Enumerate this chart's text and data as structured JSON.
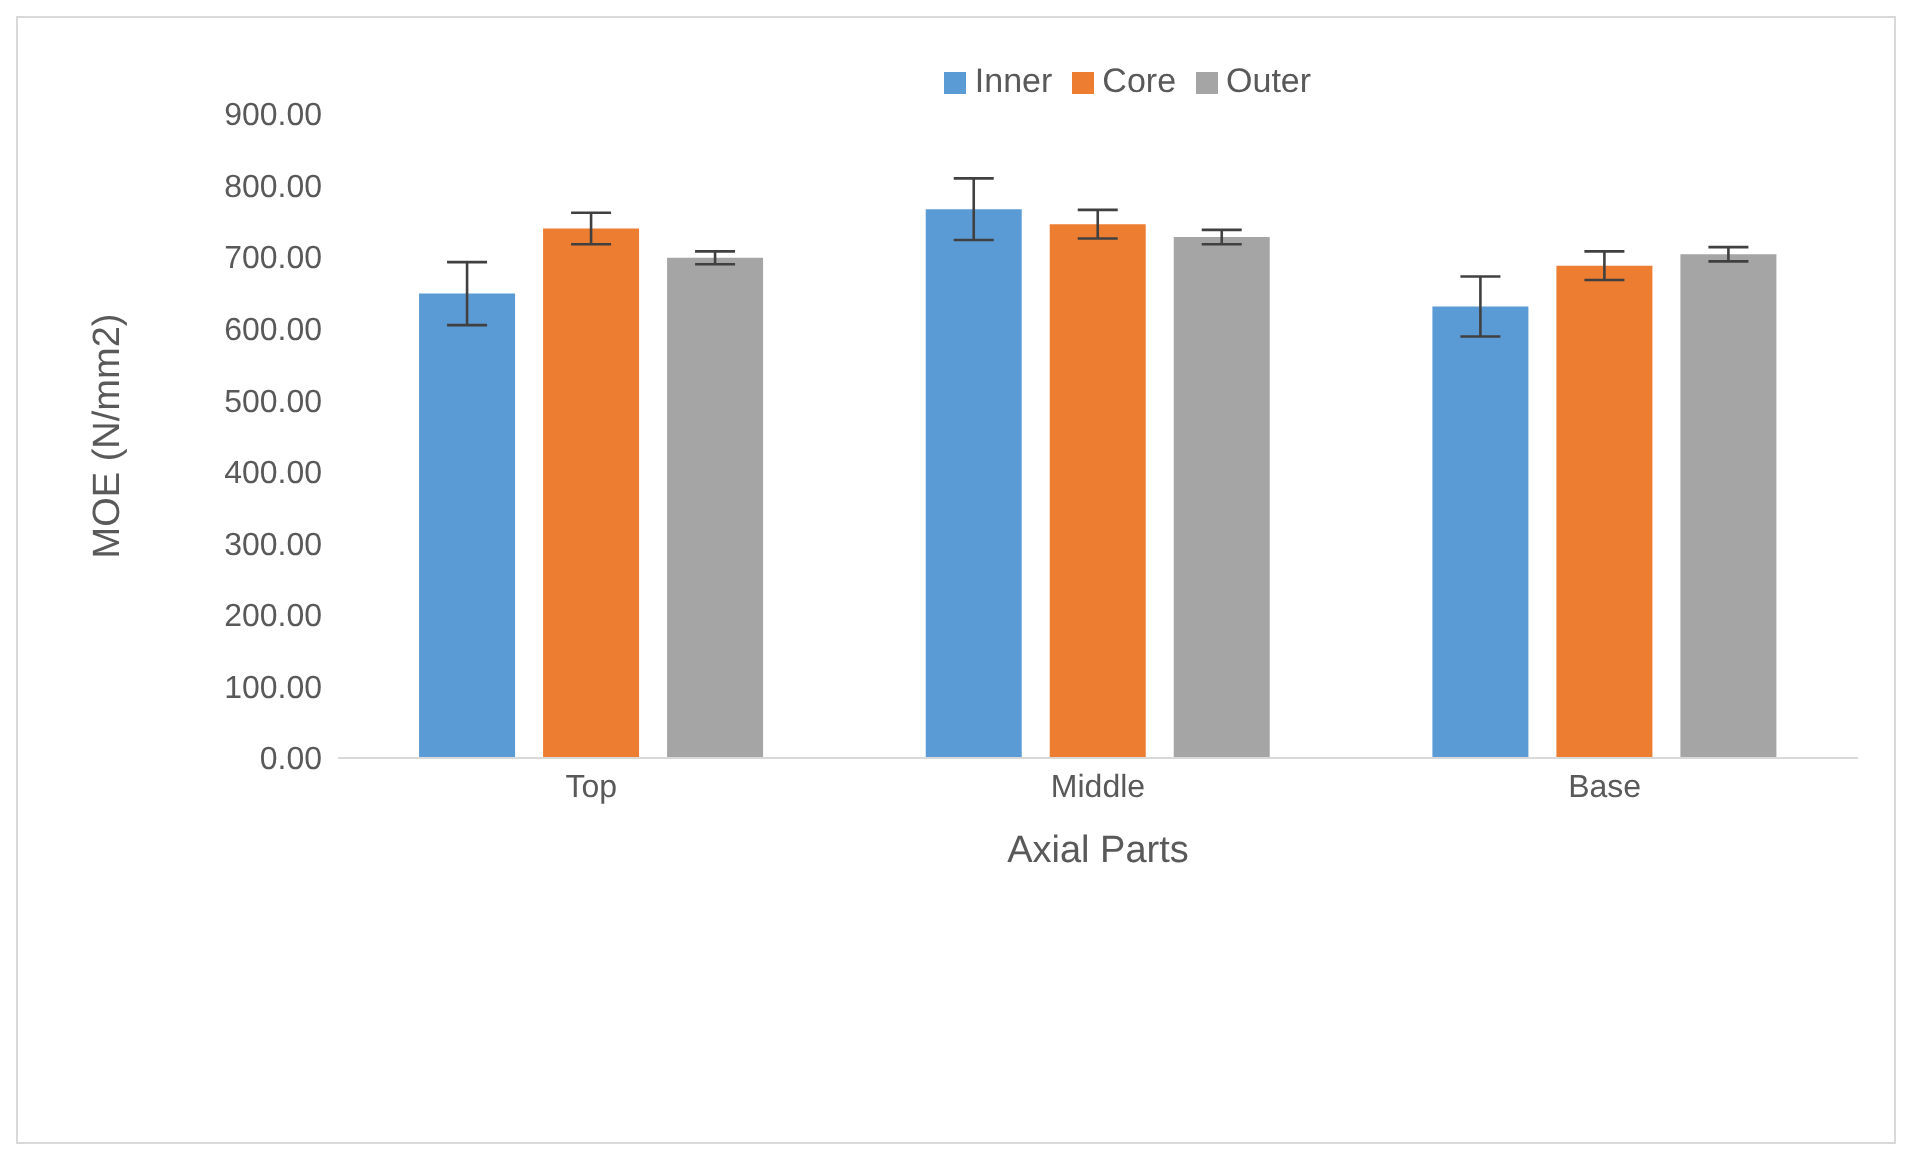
{
  "chart_data": {
    "type": "bar",
    "xlabel": "Axial Parts",
    "ylabel": "MOE (N/mm2)",
    "categories": [
      "Top",
      "Middle",
      "Base"
    ],
    "series": [
      {
        "name": "Inner",
        "color": "#5b9bd5",
        "values": [
          649,
          767,
          631
        ],
        "errors": [
          44,
          43,
          42
        ]
      },
      {
        "name": "Core",
        "color": "#ed7d31",
        "values": [
          740,
          746,
          688
        ],
        "errors": [
          22,
          20,
          20
        ]
      },
      {
        "name": "Outer",
        "color": "#a5a5a5",
        "values": [
          699,
          728,
          704
        ],
        "errors": [
          9,
          10,
          10
        ]
      }
    ],
    "ylim": [
      0,
      900
    ],
    "yticks": [
      {
        "value": 0,
        "label": "0.00"
      },
      {
        "value": 100,
        "label": "100.00"
      },
      {
        "value": 200,
        "label": "200.00"
      },
      {
        "value": 300,
        "label": "300.00"
      },
      {
        "value": 400,
        "label": "400.00"
      },
      {
        "value": 500,
        "label": "500.00"
      },
      {
        "value": 600,
        "label": "600.00"
      },
      {
        "value": 700,
        "label": "700.00"
      },
      {
        "value": 800,
        "label": "800.00"
      },
      {
        "value": 900,
        "label": "900.00"
      }
    ],
    "grid": false,
    "legend": "top"
  }
}
